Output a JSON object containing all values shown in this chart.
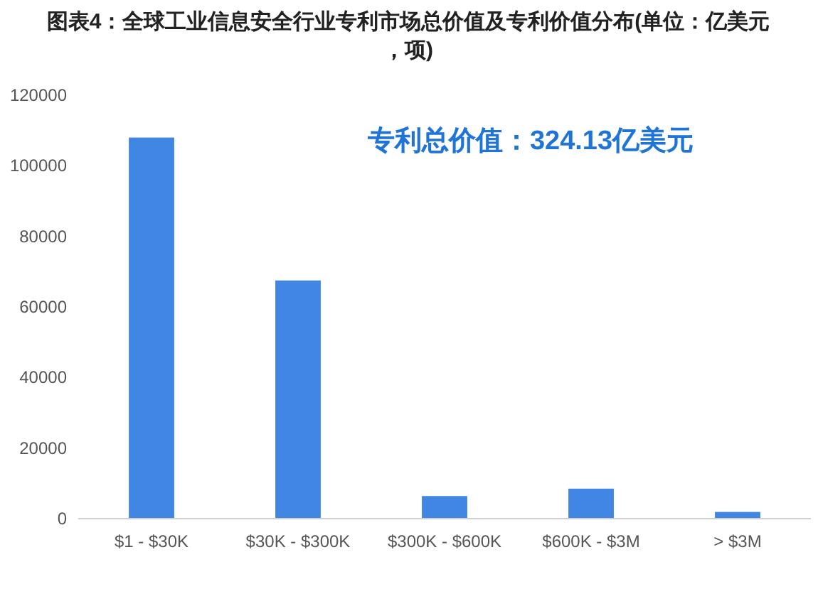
{
  "chart_data": {
    "type": "bar",
    "title": "图表4：全球工业信息安全行业专利市场总价值及专利价值分布(单位：亿美元，项)",
    "categories": [
      "$1 - $30K",
      "$30K - $300K",
      "$300K - $600K",
      "$600K - $3M",
      "> $3M"
    ],
    "values": [
      108000,
      67500,
      6400,
      8500,
      1900
    ],
    "color": "#4286e4",
    "ylim": [
      0,
      120000
    ],
    "yticks": [
      0,
      20000,
      40000,
      60000,
      80000,
      100000,
      120000
    ],
    "grid": false,
    "annotations": [
      "专利总价值：324.13亿美元"
    ]
  }
}
